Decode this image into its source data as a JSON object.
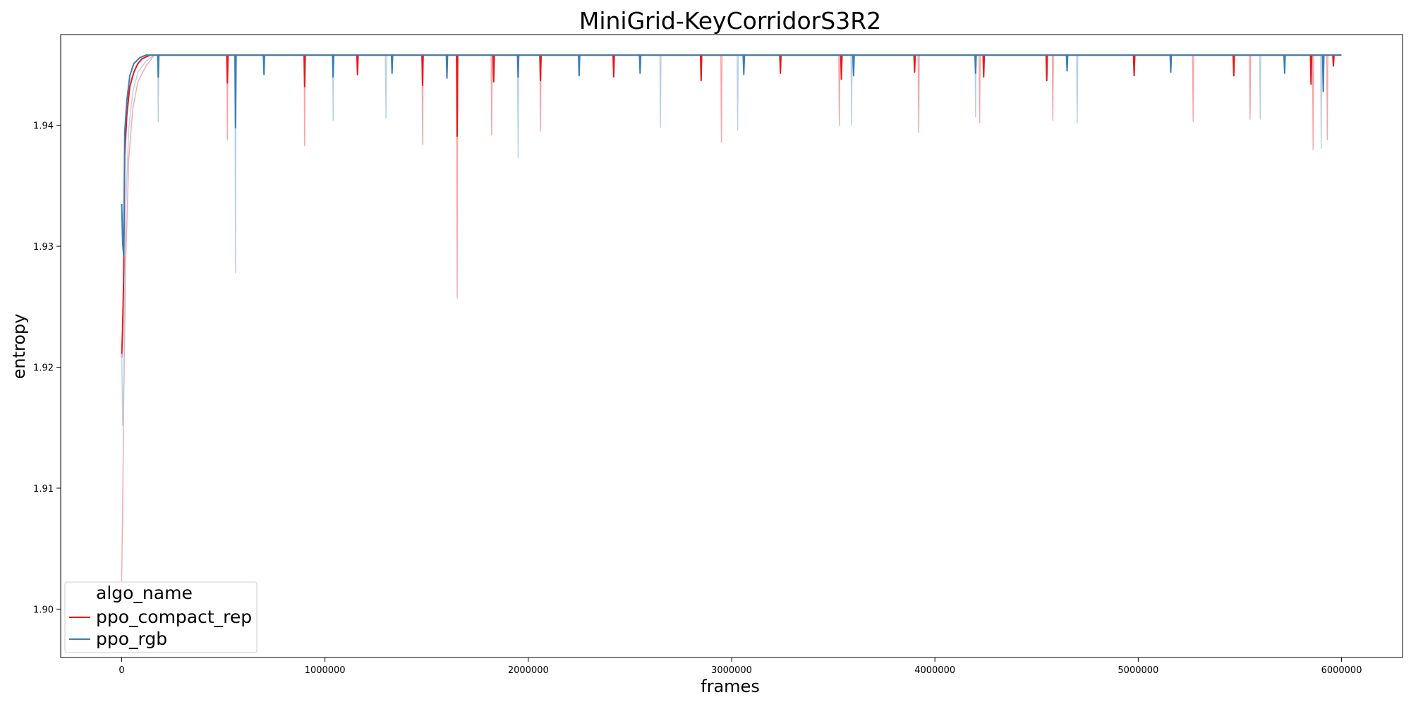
{
  "chart_data": {
    "type": "line",
    "title": "MiniGrid-KeyCorridorS3R2",
    "xlabel": "frames",
    "ylabel": "entropy",
    "xlim": [
      -300000,
      6300000
    ],
    "ylim": [
      1.896,
      1.9475
    ],
    "x_ticks": [
      0,
      1000000,
      2000000,
      3000000,
      4000000,
      5000000,
      6000000
    ],
    "x_tick_labels": [
      "0",
      "1000000",
      "2000000",
      "3000000",
      "4000000",
      "5000000",
      "6000000"
    ],
    "y_ticks": [
      1.9,
      1.91,
      1.92,
      1.93,
      1.94
    ],
    "y_tick_labels": [
      "1.90",
      "1.91",
      "1.92",
      "1.93",
      "1.94"
    ],
    "grid": false,
    "legend": {
      "title": "algo_name",
      "placement": "lower-left"
    },
    "plateau": 1.9458,
    "series": [
      {
        "name": "ppo_compact_rep",
        "color": "#e41a1c",
        "band_color": "#f4a6a8",
        "warmup": [
          [
            0,
            1.9208
          ],
          [
            5000,
            1.9235
          ],
          [
            10000,
            1.9274
          ],
          [
            15000,
            1.9375
          ],
          [
            25000,
            1.9408
          ],
          [
            40000,
            1.9432
          ],
          [
            60000,
            1.9444
          ],
          [
            80000,
            1.9451
          ],
          [
            100000,
            1.9455
          ],
          [
            140000,
            1.9458
          ]
        ],
        "band_warmup": [
          [
            0,
            1.9023
          ],
          [
            5000,
            1.9088
          ],
          [
            10000,
            1.9168
          ],
          [
            20000,
            1.9286
          ],
          [
            35000,
            1.9372
          ],
          [
            55000,
            1.9414
          ],
          [
            80000,
            1.9436
          ],
          [
            120000,
            1.9449
          ],
          [
            160000,
            1.9458
          ]
        ],
        "dips": [
          [
            520000,
            1.9435
          ],
          [
            900000,
            1.9432
          ],
          [
            1160000,
            1.9442
          ],
          [
            1480000,
            1.9433
          ],
          [
            1650000,
            1.9391
          ],
          [
            1830000,
            1.9436
          ],
          [
            2060000,
            1.9437
          ],
          [
            2420000,
            1.944
          ],
          [
            2850000,
            1.9437
          ],
          [
            3240000,
            1.9443
          ],
          [
            3540000,
            1.9438
          ],
          [
            3900000,
            1.9444
          ],
          [
            4240000,
            1.944
          ],
          [
            4550000,
            1.9437
          ],
          [
            4980000,
            1.9441
          ],
          [
            5470000,
            1.9441
          ],
          [
            5850000,
            1.9434
          ],
          [
            5960000,
            1.9449
          ]
        ],
        "band_dips": [
          [
            520000,
            1.9388
          ],
          [
            900000,
            1.9383
          ],
          [
            1480000,
            1.9384
          ],
          [
            1650000,
            1.9257
          ],
          [
            1820000,
            1.9392
          ],
          [
            2060000,
            1.9395
          ],
          [
            2950000,
            1.9386
          ],
          [
            3530000,
            1.94
          ],
          [
            3920000,
            1.9394
          ],
          [
            4220000,
            1.9402
          ],
          [
            4580000,
            1.9404
          ],
          [
            5270000,
            1.9403
          ],
          [
            5550000,
            1.9405
          ],
          [
            5860000,
            1.938
          ],
          [
            5930000,
            1.9388
          ]
        ]
      },
      {
        "name": "ppo_rgb",
        "color": "#377eb8",
        "band_color": "#b8d0e8",
        "warmup": [
          [
            0,
            1.9335
          ],
          [
            5000,
            1.9302
          ],
          [
            10000,
            1.9292
          ],
          [
            15000,
            1.9394
          ],
          [
            25000,
            1.942
          ],
          [
            40000,
            1.9441
          ],
          [
            60000,
            1.9451
          ],
          [
            90000,
            1.9456
          ],
          [
            120000,
            1.9458
          ]
        ],
        "band_warmup": [
          [
            0,
            1.9211
          ],
          [
            5000,
            1.9152
          ],
          [
            10000,
            1.9192
          ],
          [
            20000,
            1.9331
          ],
          [
            35000,
            1.9397
          ],
          [
            55000,
            1.9428
          ],
          [
            80000,
            1.9444
          ],
          [
            120000,
            1.9453
          ],
          [
            160000,
            1.9458
          ]
        ],
        "dips": [
          [
            180000,
            1.944
          ],
          [
            560000,
            1.9398
          ],
          [
            700000,
            1.9442
          ],
          [
            1040000,
            1.944
          ],
          [
            1330000,
            1.9443
          ],
          [
            1600000,
            1.9439
          ],
          [
            1950000,
            1.944
          ],
          [
            2250000,
            1.9441
          ],
          [
            2550000,
            1.9443
          ],
          [
            3060000,
            1.9442
          ],
          [
            3600000,
            1.9441
          ],
          [
            4200000,
            1.9443
          ],
          [
            4650000,
            1.9445
          ],
          [
            5160000,
            1.9444
          ],
          [
            5720000,
            1.9443
          ],
          [
            5910000,
            1.9428
          ]
        ],
        "band_dips": [
          [
            180000,
            1.9403
          ],
          [
            560000,
            1.9278
          ],
          [
            1040000,
            1.9404
          ],
          [
            1300000,
            1.9406
          ],
          [
            1950000,
            1.9373
          ],
          [
            2650000,
            1.9398
          ],
          [
            3030000,
            1.9396
          ],
          [
            3590000,
            1.94
          ],
          [
            4200000,
            1.9407
          ],
          [
            4700000,
            1.9402
          ],
          [
            5600000,
            1.9405
          ],
          [
            5900000,
            1.9381
          ]
        ]
      }
    ]
  }
}
